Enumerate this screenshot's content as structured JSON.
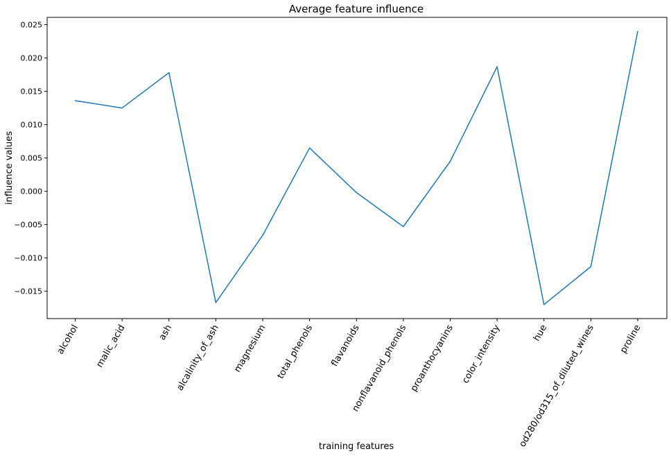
{
  "chart_data": {
    "type": "line",
    "title": "Average feature influence",
    "xlabel": "training features",
    "ylabel": "influence values",
    "categories": [
      "alcohol",
      "malic_acid",
      "ash",
      "alcalinity_of_ash",
      "magnesium",
      "total_phenols",
      "flavanoids",
      "nonflavanoid_phenols",
      "proanthocyanins",
      "color_intensity",
      "hue",
      "od280/od315_of_diluted_wines",
      "proline"
    ],
    "series": [
      {
        "values": [
          0.0136,
          0.0125,
          0.0178,
          -0.0167,
          -0.0066,
          0.0065,
          -0.0002,
          -0.0053,
          0.0045,
          0.0187,
          -0.017,
          -0.0113,
          0.024
        ]
      }
    ],
    "ylim": [
      -0.0191,
      0.0261
    ],
    "yticks": [
      -0.015,
      -0.01,
      -0.005,
      0.0,
      0.005,
      0.01,
      0.015,
      0.02,
      0.025
    ],
    "ytick_labels": [
      "−0.015",
      "−0.010",
      "−0.005",
      "0.000",
      "0.005",
      "0.010",
      "0.015",
      "0.020",
      "0.025"
    ],
    "grid": false,
    "line_color": "#1f77b4"
  }
}
